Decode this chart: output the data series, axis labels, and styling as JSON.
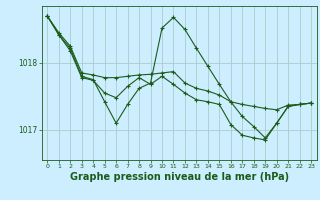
{
  "background_color": "#cceeff",
  "grid_color": "#aacccc",
  "line_color": "#1a5c1a",
  "marker_color": "#1a5c1a",
  "xlabel": "Graphe pression niveau de la mer (hPa)",
  "xlabel_fontsize": 7,
  "xlabel_color": "#1a5c1a",
  "yticks": [
    1017,
    1018
  ],
  "xticks": [
    0,
    1,
    2,
    3,
    4,
    5,
    6,
    7,
    8,
    9,
    10,
    11,
    12,
    13,
    14,
    15,
    16,
    17,
    18,
    19,
    20,
    21,
    22,
    23
  ],
  "xlim": [
    -0.5,
    23.5
  ],
  "ylim": [
    1016.55,
    1018.85
  ],
  "series": [
    [
      1018.7,
      1018.45,
      1018.25,
      1017.85,
      1017.82,
      1017.78,
      1017.78,
      1017.8,
      1017.82,
      1017.83,
      1017.85,
      1017.87,
      1017.7,
      1017.62,
      1017.58,
      1017.52,
      1017.42,
      1017.38,
      1017.35,
      1017.32,
      1017.3,
      1017.37,
      1017.38,
      1017.4
    ],
    [
      1018.7,
      1018.42,
      1018.22,
      1017.8,
      1017.75,
      1017.42,
      1017.1,
      1017.38,
      1017.62,
      1017.7,
      1018.52,
      1018.68,
      1018.5,
      1018.22,
      1017.95,
      1017.68,
      1017.42,
      1017.2,
      1017.05,
      1016.88,
      1017.1,
      1017.35,
      1017.38,
      1017.4
    ],
    [
      1018.7,
      1018.42,
      1018.18,
      1017.78,
      1017.74,
      1017.55,
      1017.48,
      1017.65,
      1017.78,
      1017.68,
      1017.8,
      1017.68,
      1017.55,
      1017.45,
      1017.42,
      1017.38,
      1017.08,
      1016.92,
      1016.88,
      1016.85,
      1017.1,
      1017.35,
      1017.38,
      1017.4
    ]
  ]
}
